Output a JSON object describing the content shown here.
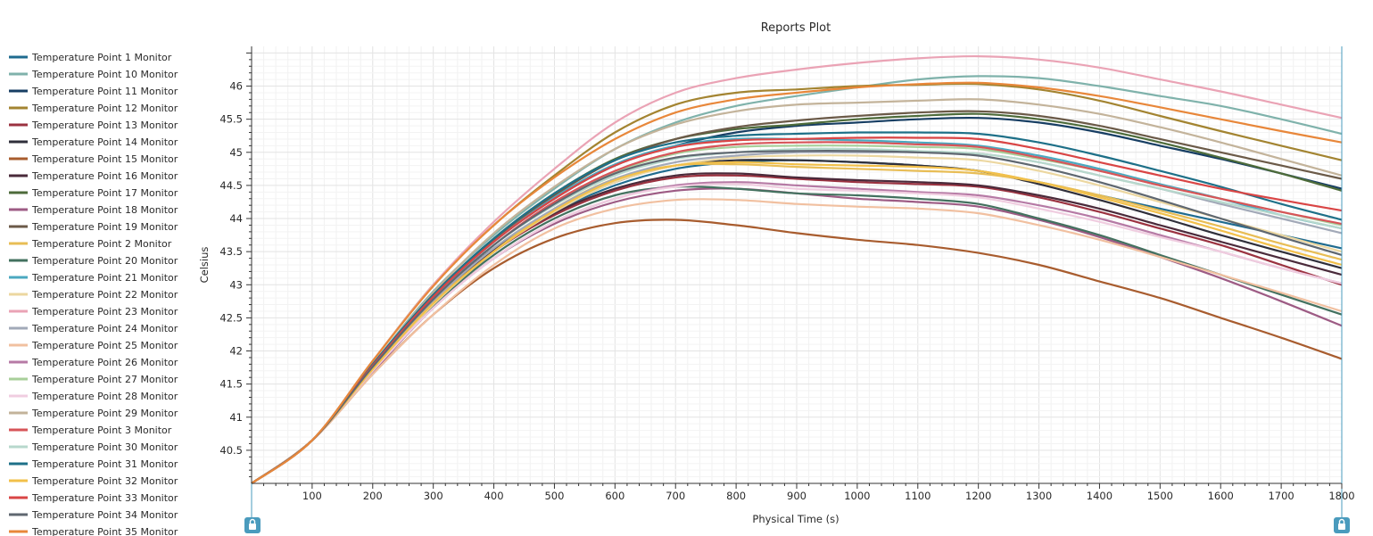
{
  "chart_data": {
    "type": "line",
    "title": "Reports Plot",
    "xlabel": "Physical Time (s)",
    "ylabel": "Celsius",
    "xlim": [
      0,
      1800
    ],
    "ylim": [
      40,
      46.6
    ],
    "x_ticks": [
      "100",
      "200",
      "300",
      "400",
      "500",
      "600",
      "700",
      "800",
      "900",
      "1000",
      "1100",
      "1200",
      "1300",
      "1400",
      "1500",
      "1600",
      "1700",
      "1800"
    ],
    "y_ticks": [
      "40.5",
      "41",
      "41.5",
      "42",
      "42.5",
      "43",
      "43.5",
      "44",
      "44.5",
      "45",
      "45.5",
      "46"
    ],
    "grid": true,
    "legend_position": "left",
    "x": [
      0,
      100,
      200,
      300,
      400,
      500,
      600,
      700,
      800,
      900,
      1000,
      1100,
      1200,
      1300,
      1400,
      1500,
      1600,
      1700,
      1800
    ],
    "series": [
      {
        "name": "Temperature Point 1 Monitor",
        "color": "#1f6b8f",
        "values": [
          40,
          40.65,
          41.75,
          42.75,
          43.55,
          44.1,
          44.5,
          44.75,
          44.85,
          44.88,
          44.85,
          44.8,
          44.72,
          44.55,
          44.35,
          44.15,
          43.95,
          43.75,
          43.55
        ]
      },
      {
        "name": "Temperature Point 10 Monitor",
        "color": "#7fb2ab",
        "values": [
          40,
          40.65,
          41.8,
          42.9,
          43.75,
          44.45,
          45.05,
          45.45,
          45.7,
          45.85,
          45.98,
          46.1,
          46.15,
          46.12,
          46,
          45.85,
          45.7,
          45.5,
          45.28
        ]
      },
      {
        "name": "Temperature Point 11 Monitor",
        "color": "#173e63",
        "values": [
          40,
          40.65,
          41.78,
          42.82,
          43.65,
          44.3,
          44.8,
          45.1,
          45.3,
          45.4,
          45.45,
          45.5,
          45.52,
          45.45,
          45.3,
          45.1,
          44.9,
          44.68,
          44.45
        ]
      },
      {
        "name": "Temperature Point 12 Monitor",
        "color": "#a38431",
        "values": [
          40,
          40.65,
          41.85,
          43,
          43.9,
          44.65,
          45.3,
          45.72,
          45.9,
          45.95,
          46,
          46.02,
          46.03,
          45.95,
          45.78,
          45.55,
          45.32,
          45.1,
          44.88
        ]
      },
      {
        "name": "Temperature Point 13 Monitor",
        "color": "#9b3240",
        "values": [
          40,
          40.65,
          41.72,
          42.7,
          43.5,
          44.05,
          44.42,
          44.62,
          44.65,
          44.6,
          44.55,
          44.52,
          44.48,
          44.32,
          44.1,
          43.85,
          43.6,
          43.3,
          43
        ]
      },
      {
        "name": "Temperature Point 14 Monitor",
        "color": "#2f2f3a",
        "values": [
          40,
          40.65,
          41.74,
          42.75,
          43.55,
          44.12,
          44.55,
          44.8,
          44.88,
          44.88,
          44.85,
          44.8,
          44.72,
          44.52,
          44.28,
          44.02,
          43.75,
          43.5,
          43.25
        ]
      },
      {
        "name": "Temperature Point 15 Monitor",
        "color": "#a85c2e",
        "values": [
          40,
          40.65,
          41.65,
          42.55,
          43.25,
          43.7,
          43.93,
          43.98,
          43.9,
          43.78,
          43.68,
          43.6,
          43.48,
          43.3,
          43.05,
          42.8,
          42.5,
          42.2,
          41.88
        ]
      },
      {
        "name": "Temperature Point 16 Monitor",
        "color": "#4a2a3a",
        "values": [
          40,
          40.65,
          41.72,
          42.72,
          43.52,
          44.08,
          44.45,
          44.65,
          44.68,
          44.62,
          44.58,
          44.55,
          44.5,
          44.35,
          44.15,
          43.9,
          43.65,
          43.4,
          43.15
        ]
      },
      {
        "name": "Temperature Point 17 Monitor",
        "color": "#4d6b3a",
        "values": [
          40,
          40.65,
          41.8,
          42.85,
          43.7,
          44.38,
          44.9,
          45.2,
          45.35,
          45.42,
          45.5,
          45.55,
          45.58,
          45.5,
          45.35,
          45.15,
          44.92,
          44.68,
          44.42
        ]
      },
      {
        "name": "Temperature Point 18 Monitor",
        "color": "#9d5b84",
        "values": [
          40,
          40.65,
          41.68,
          42.65,
          43.4,
          43.92,
          44.25,
          44.42,
          44.45,
          44.38,
          44.3,
          44.25,
          44.18,
          43.98,
          43.72,
          43.42,
          43.1,
          42.75,
          42.38
        ]
      },
      {
        "name": "Temperature Point 19 Monitor",
        "color": "#6b5a48",
        "values": [
          40,
          40.65,
          41.78,
          42.82,
          43.68,
          44.35,
          44.88,
          45.2,
          45.38,
          45.48,
          45.55,
          45.6,
          45.62,
          45.55,
          45.4,
          45.2,
          45,
          44.8,
          44.6
        ]
      },
      {
        "name": "Temperature Point 2 Monitor",
        "color": "#e8bd55",
        "values": [
          40,
          40.65,
          41.72,
          42.7,
          43.5,
          44.15,
          44.6,
          44.8,
          44.82,
          44.78,
          44.75,
          44.72,
          44.68,
          44.55,
          44.35,
          44.12,
          43.88,
          43.62,
          43.38
        ]
      },
      {
        "name": "Temperature Point 20 Monitor",
        "color": "#43715f",
        "values": [
          40,
          40.65,
          41.7,
          42.68,
          43.45,
          44,
          44.35,
          44.48,
          44.45,
          44.38,
          44.35,
          44.3,
          44.22,
          44,
          43.75,
          43.45,
          43.15,
          42.85,
          42.55
        ]
      },
      {
        "name": "Temperature Point 21 Monitor",
        "color": "#4ba8c0",
        "values": [
          40,
          40.65,
          41.78,
          42.82,
          43.65,
          44.32,
          44.82,
          45.1,
          45.2,
          45.2,
          45.18,
          45.15,
          45.1,
          44.95,
          44.75,
          44.52,
          44.3,
          44.05,
          43.85
        ]
      },
      {
        "name": "Temperature Point 22 Monitor",
        "color": "#ecd7a0",
        "values": [
          40,
          40.65,
          41.72,
          42.7,
          43.5,
          44.1,
          44.55,
          44.8,
          44.92,
          44.95,
          44.95,
          44.92,
          44.88,
          44.72,
          44.5,
          44.25,
          44,
          43.75,
          43.5
        ]
      },
      {
        "name": "Temperature Point 23 Monitor",
        "color": "#eaa3b5",
        "values": [
          40,
          40.65,
          41.85,
          43,
          43.95,
          44.75,
          45.45,
          45.9,
          46.12,
          46.25,
          46.35,
          46.42,
          46.45,
          46.4,
          46.28,
          46.1,
          45.92,
          45.72,
          45.52
        ]
      },
      {
        "name": "Temperature Point 24 Monitor",
        "color": "#a2a9b8",
        "values": [
          40,
          40.65,
          41.75,
          42.75,
          43.55,
          44.15,
          44.6,
          44.85,
          44.95,
          45,
          45,
          45,
          44.98,
          44.85,
          44.65,
          44.45,
          44.22,
          44,
          43.78
        ]
      },
      {
        "name": "Temperature Point 25 Monitor",
        "color": "#f1c0a0",
        "values": [
          40,
          40.65,
          41.65,
          42.55,
          43.3,
          43.85,
          44.15,
          44.28,
          44.28,
          44.22,
          44.18,
          44.15,
          44.08,
          43.9,
          43.68,
          43.42,
          43.15,
          42.88,
          42.6
        ]
      },
      {
        "name": "Temperature Point 26 Monitor",
        "color": "#b67aa5",
        "values": [
          40,
          40.65,
          41.7,
          42.65,
          43.4,
          43.95,
          44.3,
          44.5,
          44.55,
          44.5,
          44.45,
          44.4,
          44.35,
          44.2,
          44,
          43.75,
          43.5,
          43.25,
          43.02
        ]
      },
      {
        "name": "Temperature Point 27 Monitor",
        "color": "#a8cf9a",
        "values": [
          40,
          40.65,
          41.75,
          42.78,
          43.6,
          44.22,
          44.7,
          44.98,
          45.08,
          45.1,
          45.1,
          45.08,
          45.05,
          44.9,
          44.72,
          44.5,
          44.3,
          44.1,
          43.9
        ]
      },
      {
        "name": "Temperature Point 28 Monitor",
        "color": "#f0cde0",
        "values": [
          40,
          40.65,
          41.7,
          42.65,
          43.4,
          43.95,
          44.3,
          44.48,
          44.52,
          44.45,
          44.42,
          44.38,
          44.32,
          44.15,
          43.95,
          43.72,
          43.5,
          43.25,
          43.02
        ]
      },
      {
        "name": "Temperature Point 29 Monitor",
        "color": "#c3b39a",
        "values": [
          40,
          40.65,
          41.8,
          42.88,
          43.78,
          44.48,
          45.05,
          45.42,
          45.62,
          45.72,
          45.75,
          45.78,
          45.8,
          45.72,
          45.58,
          45.38,
          45.15,
          44.9,
          44.65
        ]
      },
      {
        "name": "Temperature Point 3 Monitor",
        "color": "#d75458",
        "values": [
          40,
          40.65,
          41.75,
          42.78,
          43.6,
          44.25,
          44.72,
          45,
          45.12,
          45.15,
          45.15,
          45.12,
          45.08,
          44.92,
          44.72,
          44.5,
          44.3,
          44.1,
          43.92
        ]
      },
      {
        "name": "Temperature Point 30 Monitor",
        "color": "#b7d8cc",
        "values": [
          40,
          40.65,
          41.75,
          42.78,
          43.6,
          44.2,
          44.65,
          44.9,
          45,
          45.05,
          45.05,
          45.02,
          44.98,
          44.85,
          44.65,
          44.45,
          44.25,
          44.05,
          43.85
        ]
      },
      {
        "name": "Temperature Point 31 Monitor",
        "color": "#1e7088",
        "values": [
          40,
          40.65,
          41.8,
          42.85,
          43.7,
          44.38,
          44.88,
          45.15,
          45.25,
          45.28,
          45.3,
          45.3,
          45.28,
          45.15,
          44.95,
          44.72,
          44.48,
          44.22,
          43.98
        ]
      },
      {
        "name": "Temperature Point 32 Monitor",
        "color": "#f2c04a",
        "values": [
          40,
          40.65,
          41.72,
          42.72,
          43.5,
          44.12,
          44.58,
          44.8,
          44.85,
          44.82,
          44.8,
          44.78,
          44.72,
          44.55,
          44.32,
          44.08,
          43.82,
          43.55,
          43.3
        ]
      },
      {
        "name": "Temperature Point 33 Monitor",
        "color": "#d94545",
        "values": [
          40,
          40.65,
          41.78,
          42.82,
          43.65,
          44.3,
          44.8,
          45.08,
          45.18,
          45.2,
          45.22,
          45.22,
          45.2,
          45.05,
          44.85,
          44.65,
          44.45,
          44.28,
          44.12
        ]
      },
      {
        "name": "Temperature Point 34 Monitor",
        "color": "#5f6770",
        "values": [
          40,
          40.65,
          41.76,
          42.78,
          43.6,
          44.22,
          44.68,
          44.92,
          45,
          45.02,
          45.02,
          45,
          44.95,
          44.78,
          44.55,
          44.28,
          44,
          43.72,
          43.45
        ]
      },
      {
        "name": "Temperature Point 35 Monitor",
        "color": "#e8873a",
        "values": [
          40,
          40.65,
          41.85,
          42.98,
          43.9,
          44.62,
          45.2,
          45.6,
          45.8,
          45.9,
          45.98,
          46.03,
          46.05,
          45.98,
          45.85,
          45.68,
          45.5,
          45.32,
          45.15
        ]
      }
    ]
  }
}
